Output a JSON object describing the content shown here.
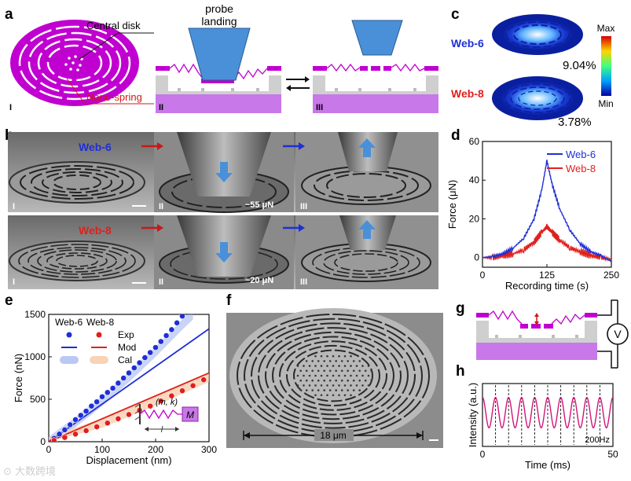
{
  "panels": {
    "a": {
      "label": "a",
      "central_disk": "Central disk",
      "nano_spring": "Nano-spring",
      "probe_landing_1": "probe",
      "probe_landing_2": "landing",
      "stage_I": "I",
      "stage_II": "II",
      "stage_III": "III"
    },
    "b": {
      "label": "b",
      "row1_name": "Web-6",
      "row2_name": "Web-8",
      "row1_force": "~55 μN",
      "row2_force": "~20 μN",
      "stage_I": "I",
      "stage_II": "II",
      "stage_III": "III"
    },
    "c": {
      "label": "c",
      "web6": "Web-6",
      "web8": "Web-8",
      "web6_pct": "9.04%",
      "web8_pct": "3.78%",
      "colorbar_max": "Max",
      "colorbar_min": "Min"
    },
    "d": {
      "label": "d"
    },
    "e": {
      "label": "e",
      "col_web6": "Web-6",
      "col_web8": "Web-8",
      "legend_exp": "Exp",
      "legend_mod": "Mod",
      "legend_cal": "Cal",
      "inset_mk": "(m, k)",
      "inset_l": "l",
      "inset_M": "M"
    },
    "f": {
      "label": "f",
      "scale_label": "18 μm"
    },
    "g": {
      "label": "g",
      "meter": "V"
    },
    "h": {
      "label": "h"
    }
  },
  "colors": {
    "web6": "#1f2fd6",
    "web8": "#e0201c",
    "purple": "#c000d0",
    "probe": "#4a90d9",
    "substrate": "#c878e8"
  },
  "chart_data": [
    {
      "type": "line",
      "panel": "d",
      "xlabel": "Recording time (s)",
      "ylabel": "Force (μN)",
      "xlim": [
        0,
        250
      ],
      "ylim": [
        -5,
        60
      ],
      "xticks": [
        0,
        125,
        250
      ],
      "yticks": [
        0,
        20,
        40,
        60
      ],
      "series": [
        {
          "name": "Web-6",
          "x": [
            0,
            20,
            40,
            60,
            80,
            100,
            115,
            125,
            135,
            150,
            170,
            190,
            210,
            230,
            250
          ],
          "y": [
            0,
            0.5,
            2,
            5,
            10,
            20,
            35,
            50,
            38,
            25,
            14,
            7,
            3,
            1,
            -2
          ]
        },
        {
          "name": "Web-8",
          "x": [
            0,
            20,
            40,
            60,
            80,
            100,
            115,
            125,
            135,
            150,
            170,
            190,
            210,
            230,
            250
          ],
          "y": [
            0,
            0,
            1,
            2,
            4,
            8,
            13,
            16,
            13,
            9,
            5,
            3,
            1,
            0,
            -1
          ]
        }
      ],
      "legend": "top-right"
    },
    {
      "type": "scatter",
      "panel": "e",
      "xlabel": "Displacement (nm)",
      "ylabel": "Force (nN)",
      "xlim": [
        0,
        300
      ],
      "ylim": [
        0,
        1500
      ],
      "xticks": [
        0,
        100,
        200,
        300
      ],
      "yticks": [
        0,
        500,
        1000,
        1500
      ],
      "series": [
        {
          "name": "Web-6 Exp",
          "x": [
            10,
            20,
            30,
            40,
            50,
            60,
            70,
            80,
            90,
            100,
            110,
            120,
            130,
            140,
            150,
            160,
            170,
            180,
            190,
            200,
            210,
            220,
            230,
            240,
            250
          ],
          "y": [
            40,
            90,
            140,
            200,
            260,
            310,
            360,
            420,
            470,
            530,
            580,
            630,
            690,
            750,
            810,
            870,
            930,
            990,
            1050,
            1110,
            1180,
            1250,
            1320,
            1400,
            1480
          ]
        },
        {
          "name": "Web-6 Mod",
          "x": [
            0,
            300
          ],
          "y": [
            0,
            1330
          ]
        },
        {
          "name": "Web-6 Cal",
          "x": [
            0,
            50,
            100,
            150,
            200,
            250,
            270
          ],
          "y": [
            0,
            230,
            480,
            760,
            1060,
            1380,
            1500
          ]
        },
        {
          "name": "Web-8 Exp",
          "x": [
            10,
            30,
            50,
            70,
            90,
            110,
            130,
            150,
            170,
            190,
            210,
            230,
            250,
            270,
            290
          ],
          "y": [
            15,
            50,
            90,
            130,
            175,
            220,
            270,
            320,
            370,
            420,
            480,
            540,
            600,
            660,
            730
          ]
        },
        {
          "name": "Web-8 Mod",
          "x": [
            0,
            300
          ],
          "y": [
            0,
            810
          ]
        },
        {
          "name": "Web-8 Cal",
          "x": [
            0,
            100,
            200,
            300
          ],
          "y": [
            0,
            220,
            480,
            760
          ]
        }
      ],
      "legend": "top-left"
    },
    {
      "type": "line",
      "panel": "h",
      "xlabel": "Time (ms)",
      "ylabel": "Intensity (a.u.)",
      "xlim": [
        0,
        50
      ],
      "xticks": [
        0,
        50
      ],
      "annotation": "200Hz"
    }
  ]
}
